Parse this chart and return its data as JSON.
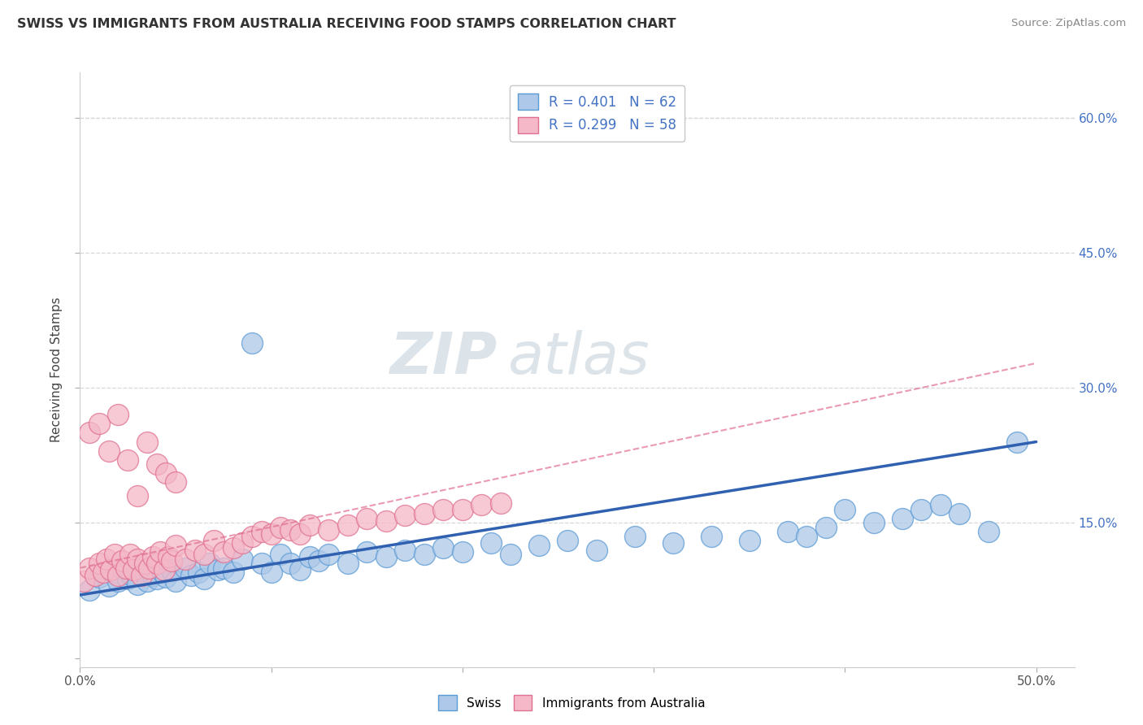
{
  "title": "SWISS VS IMMIGRANTS FROM AUSTRALIA RECEIVING FOOD STAMPS CORRELATION CHART",
  "source": "Source: ZipAtlas.com",
  "ylabel": "Receiving Food Stamps",
  "xlim": [
    0.0,
    0.52
  ],
  "ylim": [
    -0.01,
    0.65
  ],
  "xticks": [
    0.0,
    0.1,
    0.2,
    0.3,
    0.4,
    0.5
  ],
  "xticklabels": [
    "0.0%",
    "",
    "",
    "",
    "",
    "50.0%"
  ],
  "yticks_right": [
    0.15,
    0.3,
    0.45,
    0.6
  ],
  "yticklabels_right": [
    "15.0%",
    "30.0%",
    "45.0%",
    "60.0%"
  ],
  "legend_label1": "R = 0.401   N = 62",
  "legend_label2": "R = 0.299   N = 58",
  "swiss_color": "#adc8e8",
  "aus_color": "#f4b8c8",
  "swiss_edge_color": "#5b9bd5",
  "aus_edge_color": "#e07090",
  "swiss_line_color": "#3060b0",
  "aus_line_color": "#e07090",
  "grid_color": "#d8d8d8",
  "watermark_color": "#c8d8e8",
  "swiss_x": [
    0.005,
    0.01,
    0.015,
    0.018,
    0.02,
    0.022,
    0.025,
    0.027,
    0.03,
    0.032,
    0.035,
    0.038,
    0.04,
    0.043,
    0.045,
    0.048,
    0.05,
    0.055,
    0.058,
    0.062,
    0.065,
    0.068,
    0.072,
    0.075,
    0.08,
    0.085,
    0.09,
    0.095,
    0.1,
    0.105,
    0.11,
    0.115,
    0.12,
    0.125,
    0.13,
    0.14,
    0.15,
    0.16,
    0.17,
    0.18,
    0.19,
    0.2,
    0.215,
    0.225,
    0.24,
    0.255,
    0.27,
    0.29,
    0.31,
    0.33,
    0.35,
    0.37,
    0.38,
    0.39,
    0.4,
    0.415,
    0.43,
    0.44,
    0.45,
    0.46,
    0.475,
    0.49
  ],
  "swiss_y": [
    0.075,
    0.09,
    0.08,
    0.095,
    0.085,
    0.1,
    0.088,
    0.092,
    0.082,
    0.098,
    0.085,
    0.092,
    0.088,
    0.095,
    0.09,
    0.098,
    0.085,
    0.1,
    0.092,
    0.095,
    0.088,
    0.105,
    0.098,
    0.1,
    0.095,
    0.11,
    0.35,
    0.105,
    0.095,
    0.115,
    0.105,
    0.098,
    0.112,
    0.108,
    0.115,
    0.105,
    0.118,
    0.112,
    0.12,
    0.115,
    0.122,
    0.118,
    0.128,
    0.115,
    0.125,
    0.13,
    0.12,
    0.135,
    0.128,
    0.135,
    0.13,
    0.14,
    0.135,
    0.145,
    0.165,
    0.15,
    0.155,
    0.165,
    0.17,
    0.16,
    0.14,
    0.24
  ],
  "aus_x": [
    0.002,
    0.005,
    0.008,
    0.01,
    0.012,
    0.014,
    0.016,
    0.018,
    0.02,
    0.022,
    0.024,
    0.026,
    0.028,
    0.03,
    0.032,
    0.034,
    0.036,
    0.038,
    0.04,
    0.042,
    0.044,
    0.046,
    0.048,
    0.05,
    0.055,
    0.06,
    0.065,
    0.07,
    0.075,
    0.08,
    0.085,
    0.09,
    0.095,
    0.1,
    0.105,
    0.11,
    0.115,
    0.12,
    0.13,
    0.14,
    0.15,
    0.16,
    0.17,
    0.18,
    0.19,
    0.2,
    0.21,
    0.22,
    0.005,
    0.01,
    0.015,
    0.02,
    0.025,
    0.03,
    0.035,
    0.04,
    0.045,
    0.05
  ],
  "aus_y": [
    0.085,
    0.1,
    0.092,
    0.105,
    0.095,
    0.11,
    0.098,
    0.115,
    0.092,
    0.108,
    0.1,
    0.115,
    0.098,
    0.11,
    0.092,
    0.105,
    0.1,
    0.112,
    0.105,
    0.118,
    0.098,
    0.112,
    0.108,
    0.125,
    0.11,
    0.12,
    0.115,
    0.13,
    0.118,
    0.122,
    0.128,
    0.135,
    0.14,
    0.138,
    0.145,
    0.142,
    0.138,
    0.148,
    0.142,
    0.148,
    0.155,
    0.152,
    0.158,
    0.16,
    0.165,
    0.165,
    0.17,
    0.172,
    0.25,
    0.26,
    0.23,
    0.27,
    0.22,
    0.18,
    0.24,
    0.215,
    0.205,
    0.195
  ],
  "swiss_line_x0": 0.0,
  "swiss_line_x1": 0.5,
  "swiss_line_y0": 0.07,
  "swiss_line_y1": 0.24,
  "aus_line_x0": 0.0,
  "aus_line_x1": 0.22,
  "aus_line_y0": 0.1,
  "aus_line_y1": 0.2
}
